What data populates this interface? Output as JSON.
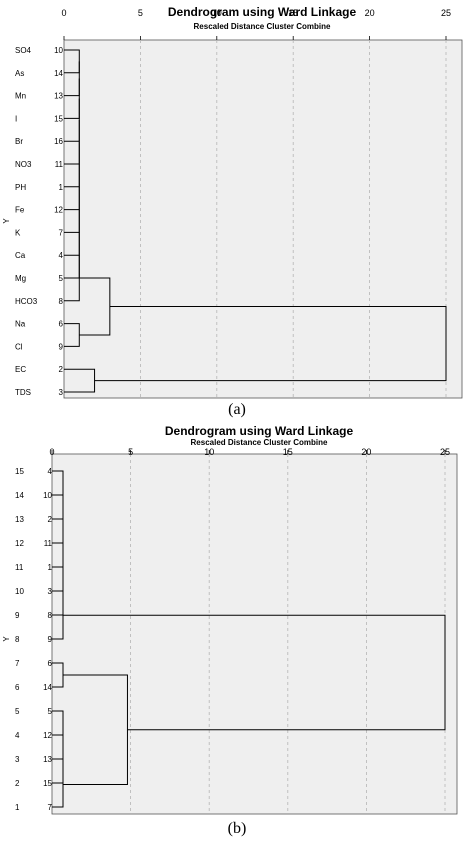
{
  "panels": {
    "a": {
      "caption": "(a)"
    },
    "b": {
      "caption": "(b)"
    }
  },
  "colors": {
    "plot_background": "#efefef",
    "line": "#000000",
    "grid": "#b5b5b5"
  },
  "chart_data": [
    {
      "type": "dendrogram",
      "title": "Dendrogram using Ward Linkage",
      "subtitle": "Rescaled Distance Cluster Combine",
      "axis_side_label": "Y",
      "xlim": [
        0,
        25
      ],
      "xticks": [
        0,
        5,
        10,
        15,
        20,
        25
      ],
      "leaves": [
        {
          "name": "SO4",
          "id": "10"
        },
        {
          "name": "As",
          "id": "14"
        },
        {
          "name": "Mn",
          "id": "13"
        },
        {
          "name": "I",
          "id": "15"
        },
        {
          "name": "Br",
          "id": "16"
        },
        {
          "name": "NO3",
          "id": "11"
        },
        {
          "name": "PH",
          "id": "1"
        },
        {
          "name": "Fe",
          "id": "12"
        },
        {
          "name": "K",
          "id": "7"
        },
        {
          "name": "Ca",
          "id": "4"
        },
        {
          "name": "Mg",
          "id": "5"
        },
        {
          "name": "HCO3",
          "id": "8"
        },
        {
          "name": "Na",
          "id": "6"
        },
        {
          "name": "Cl",
          "id": "9"
        },
        {
          "name": "EC",
          "id": "2"
        },
        {
          "name": "TDS",
          "id": "3"
        }
      ],
      "merges": [
        {
          "a": 0,
          "b": 1,
          "h": 1.0
        },
        {
          "a": 16,
          "b": 2,
          "h": 1.0
        },
        {
          "a": 17,
          "b": 3,
          "h": 1.0
        },
        {
          "a": 18,
          "b": 4,
          "h": 1.0
        },
        {
          "a": 19,
          "b": 5,
          "h": 1.0
        },
        {
          "a": 20,
          "b": 6,
          "h": 1.0
        },
        {
          "a": 21,
          "b": 7,
          "h": 1.0
        },
        {
          "a": 22,
          "b": 8,
          "h": 1.0
        },
        {
          "a": 23,
          "b": 9,
          "h": 1.0
        },
        {
          "a": 24,
          "b": 10,
          "h": 1.0
        },
        {
          "a": 25,
          "b": 11,
          "h": 1.0
        },
        {
          "a": 12,
          "b": 13,
          "h": 1.0
        },
        {
          "a": 26,
          "b": 27,
          "h": 3.0
        },
        {
          "a": 14,
          "b": 15,
          "h": 2.0
        },
        {
          "a": 28,
          "b": 29,
          "h": 25.0
        }
      ]
    },
    {
      "type": "dendrogram",
      "title": "Dendrogram using Ward Linkage",
      "subtitle": "Rescaled Distance Cluster Combine",
      "axis_side_label": "Y",
      "xlim": [
        0,
        25
      ],
      "xticks": [
        0,
        5,
        10,
        15,
        20,
        25
      ],
      "leaves": [
        {
          "name": "15",
          "id": "4"
        },
        {
          "name": "14",
          "id": "10"
        },
        {
          "name": "13",
          "id": "2"
        },
        {
          "name": "12",
          "id": "11"
        },
        {
          "name": "11",
          "id": "1"
        },
        {
          "name": "10",
          "id": "3"
        },
        {
          "name": "9",
          "id": "8"
        },
        {
          "name": "8",
          "id": "9"
        },
        {
          "name": "7",
          "id": "6"
        },
        {
          "name": "6",
          "id": "14"
        },
        {
          "name": "5",
          "id": "5"
        },
        {
          "name": "4",
          "id": "12"
        },
        {
          "name": "3",
          "id": "13"
        },
        {
          "name": "2",
          "id": "15"
        },
        {
          "name": "1",
          "id": "7"
        }
      ],
      "merges": [
        {
          "a": 0,
          "b": 1,
          "h": 0.7
        },
        {
          "a": 15,
          "b": 2,
          "h": 0.7
        },
        {
          "a": 16,
          "b": 3,
          "h": 0.7
        },
        {
          "a": 17,
          "b": 4,
          "h": 0.7
        },
        {
          "a": 18,
          "b": 5,
          "h": 0.7
        },
        {
          "a": 19,
          "b": 6,
          "h": 0.7
        },
        {
          "a": 20,
          "b": 7,
          "h": 0.7
        },
        {
          "a": 8,
          "b": 9,
          "h": 0.7
        },
        {
          "a": 10,
          "b": 11,
          "h": 0.7
        },
        {
          "a": 23,
          "b": 12,
          "h": 0.7
        },
        {
          "a": 24,
          "b": 13,
          "h": 0.7
        },
        {
          "a": 25,
          "b": 14,
          "h": 0.7
        },
        {
          "a": 22,
          "b": 26,
          "h": 4.8
        },
        {
          "a": 21,
          "b": 27,
          "h": 25.0
        }
      ]
    }
  ]
}
